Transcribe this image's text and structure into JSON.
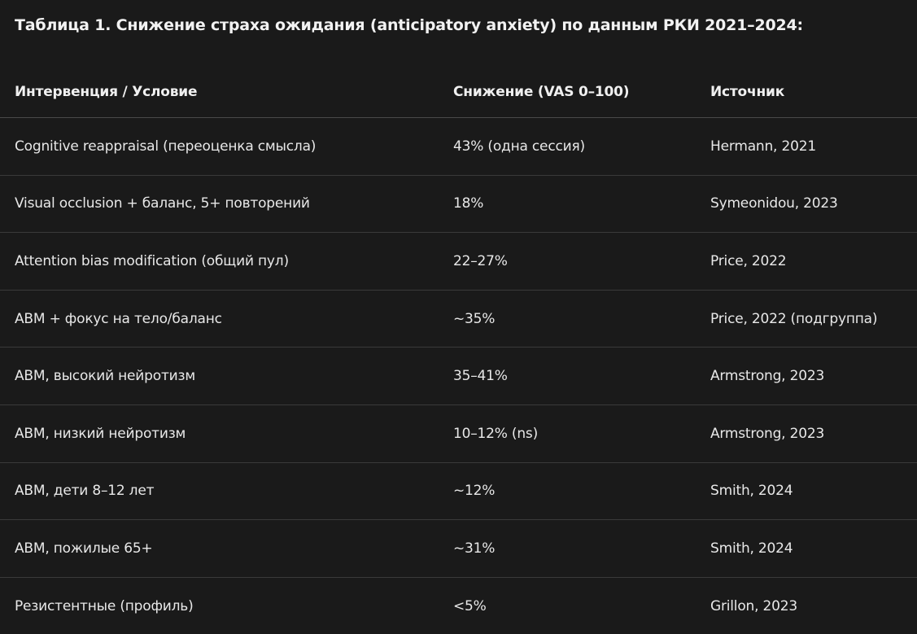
{
  "title": "Таблица 1. Снижение страха ожидания (anticipatory anxiety) по данным РКИ 2021–2024:",
  "table": {
    "headers": [
      "Интервенция / Условие",
      "Снижение (VAS 0–100)",
      "Источник"
    ],
    "rows": [
      [
        "Cognitive reappraisal (переоценка смысла)",
        "43% (одна сессия)",
        "Hermann, 2021"
      ],
      [
        "Visual occlusion + баланс, 5+ повторений",
        "18%",
        "Symeonidou, 2023"
      ],
      [
        "Attention bias modification (общий пул)",
        "22–27%",
        "Price, 2022"
      ],
      [
        "ABM + фокус на тело/баланс",
        "~35%",
        "Price, 2022 (подгруппа)"
      ],
      [
        "ABM, высокий нейротизм",
        "35–41%",
        "Armstrong, 2023"
      ],
      [
        "ABM, низкий нейротизм",
        "10–12% (ns)",
        "Armstrong, 2023"
      ],
      [
        "ABM, дети 8–12 лет",
        "~12%",
        "Smith, 2024"
      ],
      [
        "ABM, пожилые 65+",
        "~31%",
        "Smith, 2024"
      ],
      [
        "Резистентные (профиль)",
        "<5%",
        "Grillon, 2023"
      ]
    ]
  }
}
